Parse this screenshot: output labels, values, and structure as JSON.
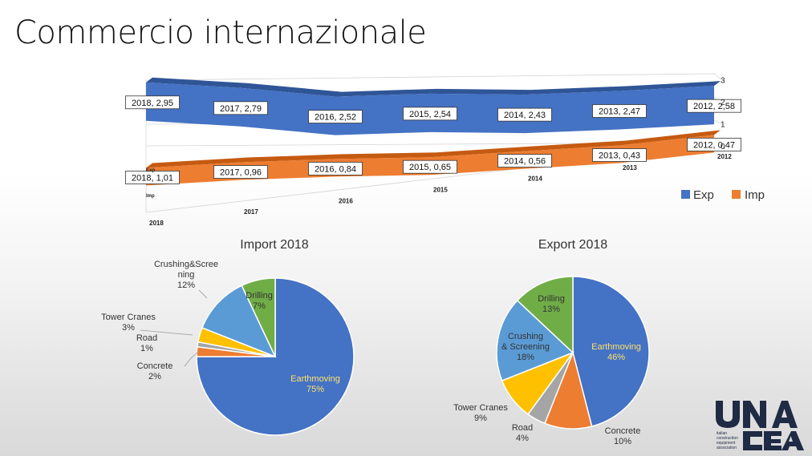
{
  "slide": {
    "title": "Commercio internazionale"
  },
  "chart_data": [
    {
      "type": "line",
      "variant": "3d-ribbon",
      "title": "",
      "categories": [
        "2018",
        "2017",
        "2016",
        "2015",
        "2014",
        "2013",
        "2012"
      ],
      "series": [
        {
          "name": "Exp",
          "values": [
            2.95,
            2.79,
            2.52,
            2.54,
            2.43,
            2.47,
            2.58
          ],
          "color": "#4472C4",
          "data_labels": [
            "2018, 2,95",
            "2017, 2,79",
            "2016, 2,52",
            "2015, 2,54",
            "2014, 2,43",
            "2013, 2,47",
            "2012, 2,58"
          ]
        },
        {
          "name": "Imp",
          "values": [
            1.01,
            0.96,
            0.84,
            0.65,
            0.56,
            0.43,
            0.47
          ],
          "color": "#ED7D31",
          "data_labels": [
            "2018, 1,01",
            "2017, 0,96",
            "2016, 0,84",
            "2015, 0,65",
            "2014, 0,56",
            "2013, 0,43",
            "2012, 0,47"
          ]
        }
      ],
      "depth_labels": [
        "Exp",
        "Imp"
      ],
      "y_ticks": [
        "0",
        "1",
        "2",
        "3"
      ],
      "ylim": [
        0,
        3
      ],
      "legend": {
        "position": "right",
        "entries": [
          "Exp",
          "Imp"
        ]
      }
    },
    {
      "type": "pie",
      "title": "Import 2018",
      "slices": [
        {
          "label": "Earthmoving",
          "pct": "75%",
          "value": 75,
          "color": "#4472C4"
        },
        {
          "label": "Concrete",
          "pct": "2%",
          "value": 2,
          "color": "#ED7D31"
        },
        {
          "label": "Road",
          "pct": "1%",
          "value": 1,
          "color": "#A5A5A5"
        },
        {
          "label": "Tower Cranes",
          "pct": "3%",
          "value": 3,
          "color": "#FFC000"
        },
        {
          "label": "Crushing&Scree ning",
          "label_lines": [
            "Crushing&Scree",
            "ning"
          ],
          "pct": "12%",
          "value": 12,
          "color": "#5B9BD5"
        },
        {
          "label": "Drilling",
          "pct": "7%",
          "value": 7,
          "color": "#70AD47"
        }
      ]
    },
    {
      "type": "pie",
      "title": "Export 2018",
      "slices": [
        {
          "label": "Earthmoving",
          "pct": "46%",
          "value": 46,
          "color": "#4472C4"
        },
        {
          "label": "Concrete",
          "pct": "10%",
          "value": 10,
          "color": "#ED7D31"
        },
        {
          "label": "Road",
          "pct": "4%",
          "value": 4,
          "color": "#A5A5A5"
        },
        {
          "label": "Tower Cranes",
          "pct": "9%",
          "value": 9,
          "color": "#FFC000"
        },
        {
          "label": "Crushing & Screening",
          "label_lines": [
            "Crushing",
            "& Screening"
          ],
          "pct": "18%",
          "value": 18,
          "color": "#5B9BD5"
        },
        {
          "label": "Drilling",
          "pct": "13%",
          "value": 13,
          "color": "#70AD47"
        }
      ]
    }
  ],
  "logo": {
    "text": "UNACEA",
    "sub_lines": [
      "italian",
      "construction",
      "equipment",
      "association"
    ],
    "color": "#1f2a44"
  }
}
